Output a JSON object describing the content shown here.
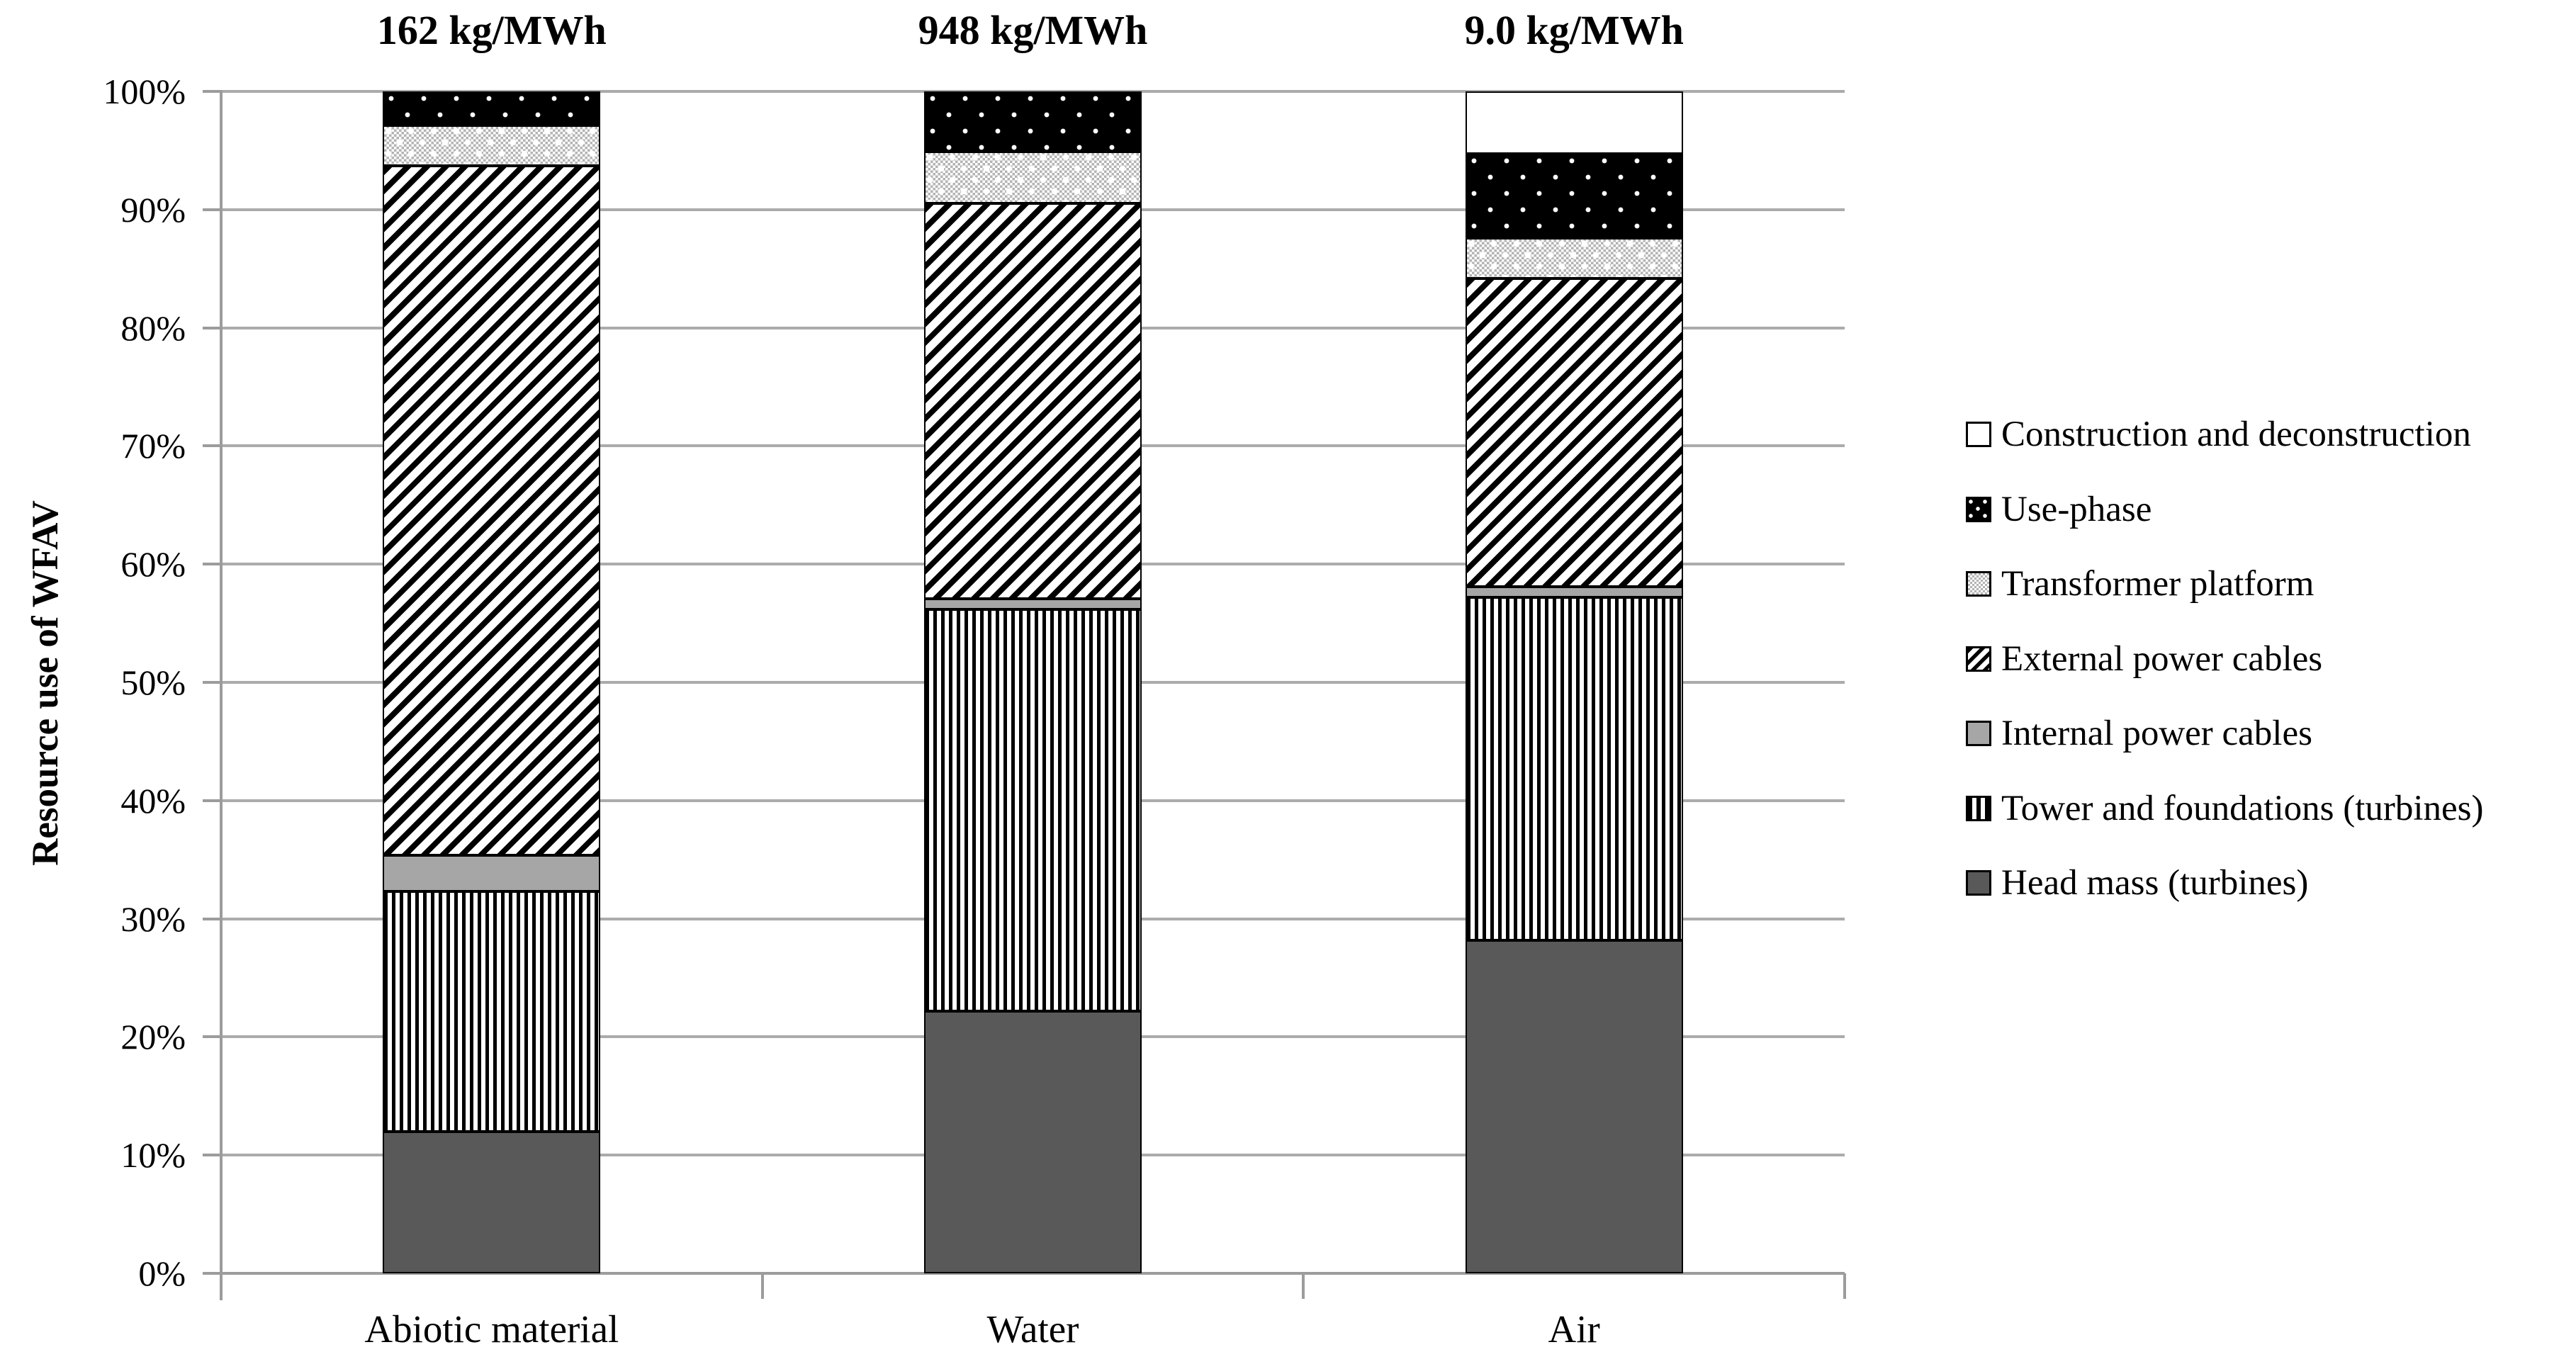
{
  "chart_data": {
    "type": "bar",
    "variant": "100-percent-stacked-column",
    "title": "",
    "ylabel": "Resource use of WFAV",
    "xlabel": "",
    "categories": [
      "Abiotic material",
      "Water",
      "Air"
    ],
    "bar_totals": [
      "162 kg/MWh",
      "948 kg/MWh",
      "9.0 kg/MWh"
    ],
    "y_ticks": [
      "0%",
      "10%",
      "20%",
      "30%",
      "40%",
      "50%",
      "60%",
      "70%",
      "80%",
      "90%",
      "100%"
    ],
    "ylim": [
      0,
      100
    ],
    "grid": true,
    "legend_position": "right",
    "series": [
      {
        "name": "Head mass (turbines)",
        "fill": "solid-dark-gray",
        "values": [
          12.0,
          22.2,
          28.2
        ]
      },
      {
        "name": "Tower and foundations (turbines)",
        "fill": "vertical-stripes",
        "values": [
          20.3,
          34.0,
          29.0
        ]
      },
      {
        "name": "Internal power cables",
        "fill": "solid-gray",
        "values": [
          3.1,
          0.9,
          0.9
        ]
      },
      {
        "name": "External power cables",
        "fill": "diagonal-stripes",
        "values": [
          58.3,
          33.4,
          26.1
        ]
      },
      {
        "name": "Transformer platform",
        "fill": "light-checker",
        "values": [
          3.4,
          4.4,
          3.4
        ]
      },
      {
        "name": "Use-phase",
        "fill": "black-white-dots",
        "values": [
          2.9,
          5.1,
          7.1
        ]
      },
      {
        "name": "Construction and deconstruction",
        "fill": "white",
        "values": [
          0.0,
          0.0,
          5.3
        ]
      }
    ],
    "legend_order_top_to_bottom": [
      "Construction and deconstruction",
      "Use-phase",
      "Transformer platform",
      "External power cables",
      "Internal power cables",
      "Tower and foundations (turbines)",
      "Head mass (turbines)"
    ]
  },
  "styles": {
    "colors": {
      "head_mass_fill": "#595959",
      "internal_cables_fill": "#a6a6a6",
      "gridline": "#ababab",
      "axis": "#9c9c9c",
      "text": "#000000",
      "background": "#ffffff"
    }
  }
}
